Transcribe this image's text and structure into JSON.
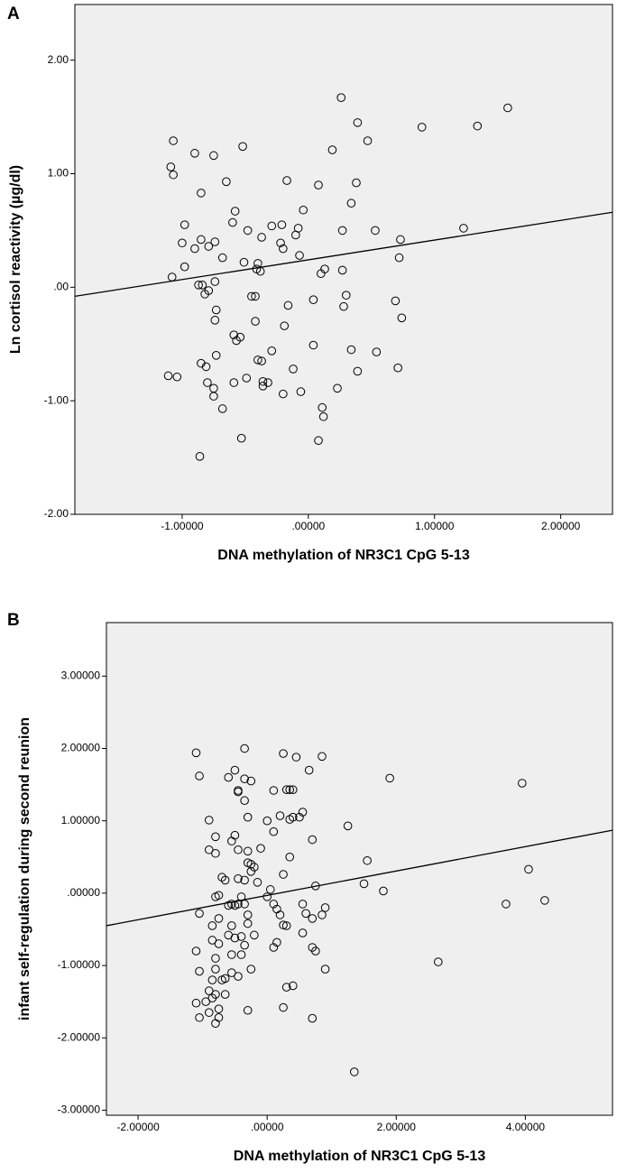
{
  "chart_data": [
    {
      "type": "scatter",
      "panel": "A",
      "xlabel": "DNA methylation of NR3C1 CpG 5-13",
      "ylabel": "Ln cortisol reactivity (µg/dl)",
      "xlim": [
        -1.85,
        2.41
      ],
      "ylim": [
        -2.0,
        2.49
      ],
      "xticks": [
        {
          "value": -1,
          "label": "-1.00000"
        },
        {
          "value": 0,
          "label": ".00000"
        },
        {
          "value": 1,
          "label": "1.00000"
        },
        {
          "value": 2,
          "label": "2.00000"
        }
      ],
      "yticks": [
        {
          "value": 2,
          "label": "2.00"
        },
        {
          "value": 1,
          "label": "1.00"
        },
        {
          "value": 0,
          "label": ".00"
        },
        {
          "value": -1,
          "label": "-1.00"
        },
        {
          "value": -2,
          "label": "-2.00"
        }
      ],
      "background": "#efefef",
      "color": "#000000",
      "fit_line": {
        "x": [
          -1.85,
          2.41
        ],
        "y": [
          -0.08,
          0.66
        ]
      },
      "x": [
        -1.07,
        -1.09,
        -1.07,
        -0.9,
        -0.75,
        -0.52,
        -0.65,
        -0.85,
        0.26,
        0.39,
        0.47,
        0.19,
        0.9,
        1.34,
        1.58,
        -0.17,
        0.08,
        0.38,
        0.34,
        -0.58,
        -0.04,
        -0.98,
        -0.6,
        -0.29,
        -0.21,
        -0.48,
        -0.37,
        -0.1,
        -0.08,
        0.27,
        0.53,
        1.23,
        0.73,
        -1.0,
        -0.9,
        -0.85,
        -0.79,
        -0.74,
        -0.22,
        -0.2,
        -0.07,
        -0.68,
        -0.98,
        -1.08,
        -0.4,
        -0.41,
        -0.51,
        -0.38,
        0.13,
        0.1,
        0.27,
        0.72,
        -0.74,
        -0.87,
        -0.84,
        -0.82,
        -0.79,
        -0.45,
        -0.42,
        0.3,
        0.69,
        0.04,
        -0.73,
        -0.74,
        0.28,
        -0.16,
        0.74,
        -0.42,
        -0.19,
        -0.59,
        -0.54,
        -0.57,
        -0.29,
        0.04,
        0.34,
        0.54,
        -0.73,
        -0.4,
        -0.37,
        -0.85,
        -0.81,
        -0.12,
        0.39,
        0.71,
        -1.11,
        -1.04,
        -0.49,
        -0.36,
        -0.32,
        -0.36,
        -0.59,
        -0.8,
        -0.75,
        -0.75,
        -0.2,
        -0.06,
        0.23,
        -0.68,
        0.11,
        0.12,
        -0.53,
        0.08,
        -0.86
      ],
      "values": [
        1.29,
        1.06,
        0.99,
        1.18,
        1.16,
        1.24,
        0.93,
        0.83,
        1.67,
        1.45,
        1.29,
        1.21,
        1.41,
        1.42,
        1.58,
        0.94,
        0.9,
        0.92,
        0.74,
        0.67,
        0.68,
        0.55,
        0.57,
        0.54,
        0.55,
        0.5,
        0.44,
        0.46,
        0.52,
        0.5,
        0.5,
        0.52,
        0.42,
        0.39,
        0.34,
        0.42,
        0.36,
        0.4,
        0.39,
        0.34,
        0.28,
        0.26,
        0.18,
        0.09,
        0.21,
        0.16,
        0.22,
        0.14,
        0.16,
        0.12,
        0.15,
        0.26,
        0.05,
        0.02,
        0.02,
        -0.06,
        -0.03,
        -0.08,
        -0.08,
        -0.07,
        -0.12,
        -0.11,
        -0.2,
        -0.29,
        -0.17,
        -0.16,
        -0.27,
        -0.3,
        -0.34,
        -0.42,
        -0.44,
        -0.47,
        -0.56,
        -0.51,
        -0.55,
        -0.57,
        -0.6,
        -0.64,
        -0.65,
        -0.67,
        -0.7,
        -0.72,
        -0.74,
        -0.71,
        -0.78,
        -0.79,
        -0.8,
        -0.83,
        -0.84,
        -0.87,
        -0.84,
        -0.84,
        -0.89,
        -0.96,
        -0.94,
        -0.92,
        -0.89,
        -1.07,
        -1.06,
        -1.14,
        -1.33,
        -1.35,
        -1.49
      ]
    },
    {
      "type": "scatter",
      "panel": "B",
      "xlabel": "DNA methylation of NR3C1 CpG 5-13",
      "ylabel": "infant self-regulation during second reunion",
      "xlim": [
        -2.49,
        5.35
      ],
      "ylim": [
        -3.07,
        3.74
      ],
      "xticks": [
        {
          "value": -2,
          "label": "-2.00000"
        },
        {
          "value": 0,
          "label": ".00000"
        },
        {
          "value": 2,
          "label": "2.00000"
        },
        {
          "value": 4,
          "label": "4.00000"
        }
      ],
      "yticks": [
        {
          "value": 3,
          "label": "3.00000"
        },
        {
          "value": 2,
          "label": "2.00000"
        },
        {
          "value": 1,
          "label": "1.00000"
        },
        {
          "value": 0,
          "label": ".00000"
        },
        {
          "value": -1,
          "label": "-1.00000"
        },
        {
          "value": -2,
          "label": "-2.00000"
        },
        {
          "value": -3,
          "label": "-3.00000"
        }
      ],
      "background": "#efefef",
      "color": "#000000",
      "fit_line": {
        "x": [
          -2.49,
          5.35
        ],
        "y": [
          -0.45,
          0.87
        ]
      },
      "x": [
        -1.1,
        -1.05,
        -0.35,
        0.25,
        0.45,
        0.85,
        -0.6,
        -0.5,
        -0.35,
        -0.25,
        -0.45,
        -0.45,
        0.1,
        0.3,
        0.35,
        0.4,
        0.65,
        1.9,
        3.95,
        -0.35,
        -0.3,
        0.0,
        0.2,
        0.35,
        0.4,
        0.5,
        0.55,
        1.25,
        -0.9,
        -0.8,
        -0.5,
        -0.55,
        -0.45,
        0.1,
        -0.1,
        -0.3,
        -0.9,
        -0.8,
        0.35,
        0.7,
        -0.3,
        -0.25,
        -0.2,
        -0.25,
        -0.15,
        -0.45,
        -0.35,
        -0.7,
        -0.65,
        0.25,
        0.75,
        1.55,
        1.5,
        1.8,
        4.05,
        3.7,
        4.3,
        -0.75,
        -0.8,
        -1.05,
        -0.4,
        -0.45,
        -0.5,
        -0.55,
        -0.6,
        -0.35,
        -0.3,
        0.0,
        0.05,
        0.1,
        0.15,
        0.2,
        0.3,
        0.25,
        0.55,
        0.6,
        0.7,
        0.85,
        0.9,
        -0.75,
        -0.85,
        -0.55,
        -0.6,
        -0.5,
        -0.4,
        -0.3,
        -0.2,
        -0.35,
        0.1,
        0.15,
        0.55,
        0.7,
        0.75,
        -0.85,
        -0.75,
        -1.1,
        -0.55,
        -0.4,
        -0.25,
        -0.45,
        -0.55,
        -0.8,
        -0.8,
        -1.05,
        -0.85,
        -0.7,
        -0.65,
        0.9,
        2.65,
        0.3,
        0.4,
        -0.9,
        -0.8,
        -0.85,
        -1.1,
        -0.95,
        -0.75,
        -0.65,
        -0.9,
        -1.05,
        -0.75,
        -0.8,
        -0.3,
        0.25,
        0.7,
        1.35
      ],
      "values": [
        1.94,
        1.62,
        2.0,
        1.93,
        1.88,
        1.89,
        1.6,
        1.7,
        1.58,
        1.55,
        1.42,
        1.4,
        1.42,
        1.43,
        1.43,
        1.43,
        1.7,
        1.59,
        1.52,
        1.28,
        1.05,
        1.0,
        1.07,
        1.02,
        1.05,
        1.05,
        1.12,
        0.93,
        1.01,
        0.78,
        0.8,
        0.72,
        0.6,
        0.85,
        0.62,
        0.58,
        0.6,
        0.55,
        0.5,
        0.74,
        0.42,
        0.4,
        0.36,
        0.3,
        0.15,
        0.2,
        0.18,
        0.22,
        0.18,
        0.26,
        0.1,
        0.45,
        0.13,
        0.03,
        0.33,
        -0.15,
        -0.1,
        -0.03,
        -0.05,
        -0.28,
        -0.05,
        -0.15,
        -0.17,
        -0.15,
        -0.17,
        -0.15,
        -0.3,
        -0.05,
        0.05,
        -0.15,
        -0.22,
        -0.3,
        -0.45,
        -0.44,
        -0.15,
        -0.28,
        -0.35,
        -0.3,
        -0.2,
        -0.35,
        -0.45,
        -0.45,
        -0.58,
        -0.62,
        -0.6,
        -0.42,
        -0.58,
        -0.72,
        -0.75,
        -0.68,
        -0.55,
        -0.75,
        -0.8,
        -0.65,
        -0.7,
        -0.8,
        -0.85,
        -0.85,
        -1.05,
        -1.15,
        -1.1,
        -0.9,
        -1.05,
        -1.08,
        -1.2,
        -1.2,
        -1.18,
        -1.05,
        -0.95,
        -1.3,
        -1.28,
        -1.35,
        -1.4,
        -1.45,
        -1.52,
        -1.5,
        -1.6,
        -1.4,
        -1.65,
        -1.72,
        -1.72,
        -1.8,
        -1.62,
        -1.58,
        -1.73,
        -2.47
      ]
    }
  ]
}
